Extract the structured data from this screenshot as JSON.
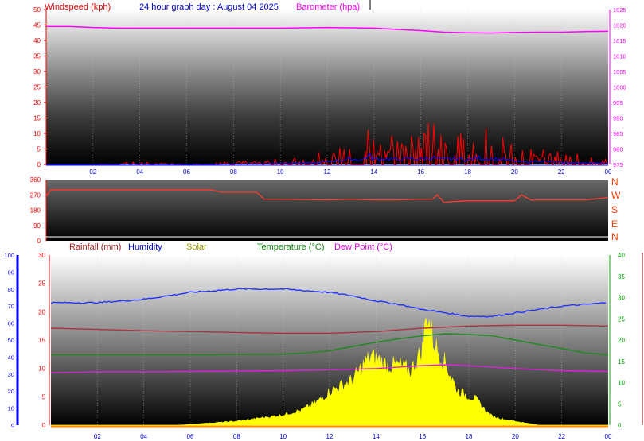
{
  "header": {
    "wind_label": "Windspeed (kph)",
    "title": "24 hour graph day : August 04 2025",
    "baro_label": "Barometer (hpa)"
  },
  "legend": {
    "rainfall": "Rainfall (mm)",
    "humidity": "Humidity",
    "solar": "Solar",
    "temperature": "Temperature (°C)",
    "dewpoint": "Dew Point (°C)"
  },
  "compass": [
    "N",
    "W",
    "S",
    "E",
    "N"
  ],
  "colors": {
    "wind": "#ff0000",
    "gust_avg": "#0000ff",
    "barometer": "#ff00ff",
    "direction": "#ff3b30",
    "humidity": "#2233ff",
    "temperature": "#1f8a1f",
    "dewpoint": "#dd22dd",
    "rain": "#aa3344",
    "solar": "#ffff00",
    "axis_red": "#ff0000",
    "axis_blue": "#0000ff",
    "axis_green": "#00aa00"
  },
  "chart_data": [
    {
      "type": "line",
      "title": "24 hour graph day : August 04 2025",
      "x_ticks": [
        "02",
        "04",
        "06",
        "08",
        "10",
        "12",
        "14",
        "16",
        "18",
        "20",
        "22",
        "00"
      ],
      "y_left": {
        "label": "Windspeed (kph)",
        "ticks": [
          0,
          5,
          10,
          15,
          20,
          25,
          30,
          35,
          40,
          45,
          50
        ],
        "range": [
          0,
          50
        ]
      },
      "y_right": {
        "label": "Barometer (hpa)",
        "ticks": [
          975,
          980,
          985,
          990,
          995,
          1000,
          1005,
          1010,
          1015,
          1020,
          1025
        ],
        "range": [
          975,
          1025
        ]
      },
      "series": [
        {
          "name": "Windspeed (kph)",
          "x_hours": [
            0,
            2,
            4,
            6,
            8,
            10,
            11.5,
            12,
            12.5,
            13,
            13.5,
            13.8,
            14,
            14.5,
            15,
            15.5,
            16,
            16.5,
            17,
            17.5,
            18,
            18.5,
            19,
            19.5,
            20,
            20.5,
            21,
            22,
            23,
            24
          ],
          "values": [
            0,
            0,
            1,
            0,
            1,
            2,
            4,
            6,
            9,
            12,
            10,
            20,
            11,
            13,
            10,
            13,
            12,
            15,
            11,
            13,
            10,
            15,
            12,
            11,
            7,
            5,
            8,
            4,
            4,
            2
          ]
        },
        {
          "name": "Barometer (hpa)",
          "x_hours": [
            0,
            1,
            2,
            3,
            4,
            6,
            8,
            10,
            12,
            13,
            14,
            15,
            16,
            17,
            18,
            19,
            20,
            21,
            22,
            23,
            24
          ],
          "values": [
            1019.5,
            1019.5,
            1019.2,
            1019.0,
            1019.0,
            1019.0,
            1019.0,
            1019.0,
            1019.2,
            1019.1,
            1019.0,
            1018.6,
            1018.2,
            1017.7,
            1017.5,
            1017.4,
            1017.6,
            1017.7,
            1017.7,
            1017.9,
            1018.0
          ]
        }
      ]
    },
    {
      "type": "line",
      "y_left": {
        "ticks": [
          0,
          90,
          180,
          270,
          360
        ],
        "range": [
          0,
          360
        ]
      },
      "y_right_labels": [
        "N",
        "W",
        "S",
        "E",
        "N"
      ],
      "series": [
        {
          "name": "Wind direction",
          "x_hours": [
            0,
            0.2,
            1,
            4,
            7,
            7.5,
            9,
            9.3,
            10,
            12,
            13,
            14,
            15,
            15.8,
            16.5,
            16.7,
            17,
            17.3,
            18,
            19,
            20,
            20.3,
            20.7,
            21,
            22,
            23,
            24
          ],
          "values": [
            260,
            300,
            300,
            300,
            300,
            285,
            285,
            245,
            245,
            240,
            245,
            240,
            240,
            245,
            245,
            270,
            225,
            230,
            235,
            235,
            235,
            270,
            240,
            240,
            240,
            240,
            255
          ]
        }
      ]
    },
    {
      "type": "line",
      "y_left_outer": {
        "label": "Humidity",
        "ticks": [
          0,
          10,
          20,
          30,
          40,
          50,
          60,
          70,
          80,
          90,
          100
        ],
        "range": [
          0,
          100
        ]
      },
      "y_left_inner": {
        "label": "Rainfall (mm)",
        "ticks": [
          0,
          5,
          10,
          15,
          20,
          25,
          30
        ],
        "range": [
          0,
          30
        ]
      },
      "y_right": {
        "label": "Temperature (°C)",
        "ticks": [
          0,
          5,
          10,
          15,
          20,
          25,
          30,
          35,
          40
        ],
        "range": [
          0,
          40
        ]
      },
      "x_ticks": [
        "02",
        "04",
        "06",
        "08",
        "10",
        "12",
        "14",
        "16",
        "18",
        "20",
        "22",
        "00"
      ],
      "series": [
        {
          "name": "Humidity",
          "x_hours": [
            0,
            2,
            4,
            6,
            8,
            10,
            12,
            13,
            14,
            15,
            16,
            17,
            18,
            19,
            20,
            21,
            22,
            23,
            24
          ],
          "values": [
            72,
            72,
            74,
            78,
            80,
            80,
            78,
            76,
            73,
            71,
            68,
            66,
            64,
            64,
            66,
            68,
            70,
            71,
            72
          ]
        },
        {
          "name": "Temperature (°C)",
          "x_hours": [
            0,
            2,
            4,
            6,
            8,
            10,
            11,
            12,
            13,
            14,
            15,
            16,
            17,
            18,
            19,
            20,
            21,
            22,
            23,
            24
          ],
          "values": [
            16.5,
            16.5,
            16.5,
            16.5,
            16.6,
            16.7,
            17,
            17.5,
            18.5,
            19.5,
            20.3,
            21,
            21.5,
            21.3,
            21,
            20,
            19,
            18,
            17,
            16.5
          ]
        },
        {
          "name": "Dew Point (°C)",
          "x_hours": [
            0,
            2,
            4,
            6,
            8,
            10,
            12,
            14,
            16,
            17,
            18,
            20,
            22,
            24
          ],
          "values": [
            12.3,
            12.5,
            12.5,
            12.6,
            12.7,
            12.8,
            13.0,
            13.3,
            14.0,
            14.2,
            14.0,
            13.3,
            12.8,
            12.6
          ]
        },
        {
          "name": "Temperature max band",
          "x_hours": [
            0,
            2,
            4,
            6,
            8,
            10,
            12,
            14,
            16,
            18,
            20,
            22,
            24
          ],
          "values": [
            22.8,
            22.5,
            22.2,
            22.0,
            21.8,
            21.6,
            21.6,
            22.0,
            22.8,
            23.3,
            23.5,
            23.5,
            23.3
          ]
        },
        {
          "name": "Solar",
          "x_hours": [
            0,
            5.5,
            6.5,
            8,
            9,
            10,
            10.8,
            11.5,
            12,
            12.5,
            13,
            13.5,
            13.8,
            14.2,
            14.5,
            15,
            15.5,
            16,
            16.2,
            16.5,
            17,
            17.5,
            18,
            18.3,
            18.8,
            19,
            19.5,
            20,
            21,
            24
          ],
          "values": [
            0,
            0,
            0.4,
            1,
            1.8,
            2.6,
            3.8,
            6,
            8.5,
            10,
            11.4,
            15.6,
            17.1,
            16.3,
            15,
            15.1,
            13.7,
            19.1,
            28.7,
            20.5,
            15.4,
            8.8,
            7.3,
            6.5,
            3.2,
            2.3,
            1.5,
            1,
            0,
            0
          ]
        }
      ]
    }
  ]
}
